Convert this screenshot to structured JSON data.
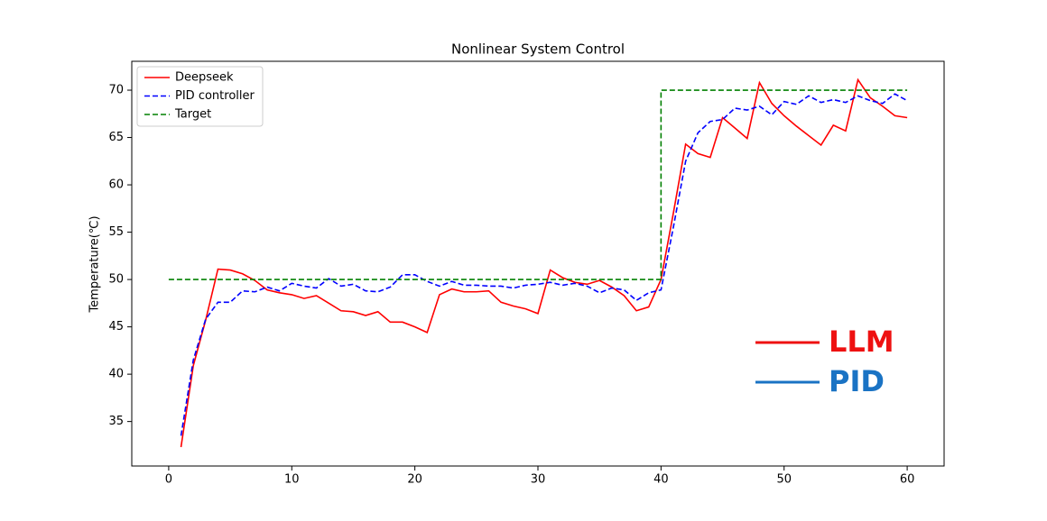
{
  "chart_data": {
    "type": "line",
    "title": "Nonlinear System Control",
    "ylabel": "Temperature(℃)",
    "xlim": [
      -3,
      63
    ],
    "ylim": [
      30.3,
      73.05
    ],
    "xticks": [
      0,
      10,
      20,
      30,
      40,
      50,
      60
    ],
    "yticks": [
      35,
      40,
      45,
      50,
      55,
      60,
      65,
      70
    ],
    "legend": "upper left",
    "series": [
      {
        "name": "Deepseek",
        "color": "#ff0000",
        "linestyle": "solid",
        "x": [
          1,
          2,
          3,
          4,
          5,
          6,
          7,
          8,
          9,
          10,
          11,
          12,
          13,
          14,
          15,
          16,
          17,
          18,
          19,
          20,
          21,
          22,
          23,
          24,
          25,
          26,
          27,
          28,
          29,
          30,
          31,
          32,
          33,
          34,
          35,
          36,
          37,
          38,
          39,
          40,
          41,
          42,
          43,
          44,
          45,
          46,
          47,
          48,
          49,
          50,
          51,
          52,
          53,
          54,
          55,
          56,
          57,
          58,
          59,
          60
        ],
        "values": [
          32.3,
          40.9,
          45.7,
          51.1,
          51.0,
          50.6,
          49.9,
          48.9,
          48.6,
          48.4,
          48.0,
          48.3,
          47.5,
          46.7,
          46.6,
          46.2,
          46.6,
          45.5,
          45.5,
          45.0,
          44.4,
          48.4,
          49.0,
          48.7,
          48.7,
          48.8,
          47.6,
          47.2,
          46.9,
          46.4,
          51.0,
          50.2,
          49.7,
          49.5,
          49.9,
          49.2,
          48.3,
          46.7,
          47.1,
          50.0,
          57.0,
          64.3,
          63.3,
          62.9,
          67.1,
          66.0,
          64.9,
          70.8,
          68.6,
          67.3,
          66.2,
          65.2,
          64.2,
          66.3,
          65.7,
          71.1,
          69.2,
          68.3,
          67.3,
          67.1
        ]
      },
      {
        "name": "PID controller",
        "color": "#0000ff",
        "linestyle": "dashed",
        "x": [
          1,
          2,
          3,
          4,
          5,
          6,
          7,
          8,
          9,
          10,
          11,
          12,
          13,
          14,
          15,
          16,
          17,
          18,
          19,
          20,
          21,
          22,
          23,
          24,
          25,
          26,
          27,
          28,
          29,
          30,
          31,
          32,
          33,
          34,
          35,
          36,
          37,
          38,
          39,
          40,
          41,
          42,
          43,
          44,
          45,
          46,
          47,
          48,
          49,
          50,
          51,
          52,
          53,
          54,
          55,
          56,
          57,
          58,
          59,
          60
        ],
        "values": [
          33.5,
          41.5,
          45.8,
          47.6,
          47.6,
          48.8,
          48.7,
          49.2,
          48.8,
          49.6,
          49.3,
          49.1,
          50.1,
          49.3,
          49.5,
          48.8,
          48.7,
          49.2,
          50.5,
          50.5,
          49.8,
          49.3,
          49.8,
          49.4,
          49.4,
          49.3,
          49.3,
          49.1,
          49.4,
          49.5,
          49.7,
          49.4,
          49.6,
          49.3,
          48.6,
          49.1,
          48.9,
          47.8,
          48.6,
          48.9,
          55.5,
          62.5,
          65.5,
          66.7,
          66.9,
          68.1,
          67.9,
          68.3,
          67.4,
          68.8,
          68.5,
          69.4,
          68.7,
          69.0,
          68.7,
          69.4,
          68.9,
          68.6,
          69.6,
          68.9
        ]
      },
      {
        "name": "Target",
        "color": "#008000",
        "linestyle": "dashed",
        "x": [
          0,
          40,
          40,
          60
        ],
        "values": [
          50,
          50,
          70,
          70
        ]
      }
    ],
    "annotations": [
      {
        "text": "LLM",
        "color": "#ee1111"
      },
      {
        "text": "PID",
        "color": "#1a73c4"
      }
    ]
  }
}
